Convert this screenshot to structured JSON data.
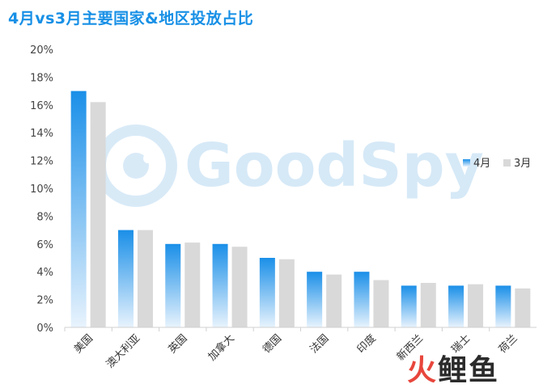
{
  "title": "4月vs3月主要国家&地区投放占比",
  "watermark": "GoodSpy",
  "corner_logo": {
    "char1": "火",
    "char2": "鲤",
    "char3": "鱼"
  },
  "colors": {
    "apr_top": "#1a8fe8",
    "apr_bottom": "#e8f3fd",
    "mar": "#d9d9d9",
    "title": "#1890e6",
    "corner_red": "#e8463c"
  },
  "chart_data": {
    "type": "bar",
    "categories": [
      "美国",
      "澳大利亚",
      "英国",
      "加拿大",
      "德国",
      "法国",
      "印度",
      "新西兰",
      "瑞士",
      "荷兰"
    ],
    "series": [
      {
        "name": "4月",
        "values": [
          17,
          7,
          6,
          6,
          5,
          4,
          4,
          3,
          3,
          3
        ]
      },
      {
        "name": "3月",
        "values": [
          16.2,
          7,
          6.1,
          5.8,
          4.9,
          3.8,
          3.4,
          3.2,
          3.1,
          2.8
        ]
      }
    ],
    "ylim": [
      0,
      20
    ],
    "yticks": [
      "0%",
      "2%",
      "4%",
      "6%",
      "8%",
      "10%",
      "12%",
      "14%",
      "16%",
      "18%",
      "20%"
    ],
    "ytick_values": [
      0,
      2,
      4,
      6,
      8,
      10,
      12,
      14,
      16,
      18,
      20
    ],
    "legend_position": "right",
    "grid": false
  }
}
